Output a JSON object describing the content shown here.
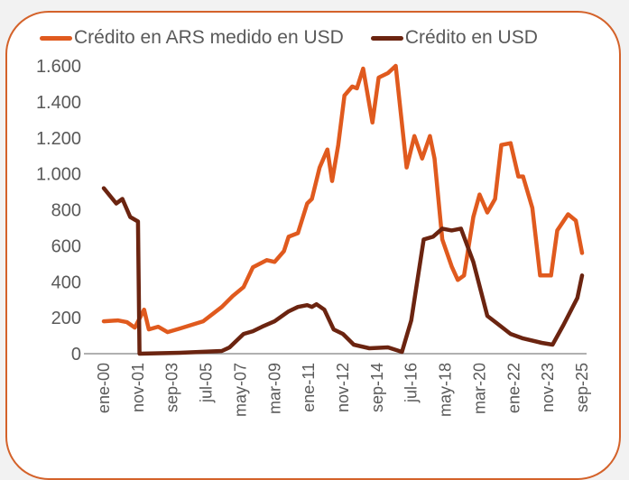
{
  "chart_data": {
    "type": "line",
    "title": "",
    "xlabel": "",
    "ylabel": "",
    "ylim": [
      0,
      1600
    ],
    "yticks": [
      0,
      200,
      400,
      600,
      800,
      1000,
      1200,
      1400,
      1600
    ],
    "ytick_labels": [
      "0",
      "200",
      "400",
      "600",
      "800",
      "1.000",
      "1.200",
      "1.400",
      "1.600"
    ],
    "xlim": [
      "2000-01",
      "2025-09"
    ],
    "xticks": [
      "2000-01",
      "2001-11",
      "2003-09",
      "2005-07",
      "2007-05",
      "2009-03",
      "2011-01",
      "2012-11",
      "2014-09",
      "2016-07",
      "2018-05",
      "2020-03",
      "2022-01",
      "2023-11",
      "2025-09"
    ],
    "xtick_labels": [
      "ene-00",
      "nov-01",
      "sep-03",
      "jul-05",
      "may-07",
      "mar-09",
      "ene-11",
      "nov-12",
      "sep-14",
      "jul-16",
      "may-18",
      "mar-20",
      "ene-22",
      "nov-23",
      "sep-25"
    ],
    "grid": false,
    "legend_position": "top",
    "series": [
      {
        "name": "Crédito en ARS medido en USD",
        "color": "#e05a1e",
        "points": [
          [
            "2000-01",
            180
          ],
          [
            "2000-10",
            185
          ],
          [
            "2001-04",
            175
          ],
          [
            "2001-09",
            145
          ],
          [
            "2002-03",
            245
          ],
          [
            "2002-06",
            135
          ],
          [
            "2002-12",
            150
          ],
          [
            "2003-06",
            120
          ],
          [
            "2004-02",
            140
          ],
          [
            "2005-05",
            180
          ],
          [
            "2006-05",
            260
          ],
          [
            "2006-12",
            320
          ],
          [
            "2007-07",
            370
          ],
          [
            "2008-01",
            480
          ],
          [
            "2008-10",
            520
          ],
          [
            "2009-03",
            510
          ],
          [
            "2009-09",
            570
          ],
          [
            "2009-12",
            650
          ],
          [
            "2010-06",
            670
          ],
          [
            "2010-12",
            835
          ],
          [
            "2011-03",
            860
          ],
          [
            "2011-08",
            1035
          ],
          [
            "2012-01",
            1135
          ],
          [
            "2012-04",
            960
          ],
          [
            "2012-08",
            1160
          ],
          [
            "2012-12",
            1435
          ],
          [
            "2013-05",
            1485
          ],
          [
            "2013-08",
            1475
          ],
          [
            "2013-12",
            1585
          ],
          [
            "2014-06",
            1285
          ],
          [
            "2014-10",
            1535
          ],
          [
            "2015-04",
            1560
          ],
          [
            "2015-09",
            1600
          ],
          [
            "2016-04",
            1035
          ],
          [
            "2016-09",
            1210
          ],
          [
            "2017-02",
            1085
          ],
          [
            "2017-07",
            1210
          ],
          [
            "2017-10",
            1085
          ],
          [
            "2018-03",
            635
          ],
          [
            "2018-09",
            485
          ],
          [
            "2019-01",
            410
          ],
          [
            "2019-05",
            435
          ],
          [
            "2019-11",
            760
          ],
          [
            "2020-03",
            885
          ],
          [
            "2020-08",
            785
          ],
          [
            "2021-01",
            860
          ],
          [
            "2021-05",
            1160
          ],
          [
            "2021-11",
            1170
          ],
          [
            "2022-04",
            985
          ],
          [
            "2022-07",
            985
          ],
          [
            "2023-01",
            810
          ],
          [
            "2023-06",
            435
          ],
          [
            "2024-01",
            435
          ],
          [
            "2024-05",
            685
          ],
          [
            "2024-12",
            775
          ],
          [
            "2025-05",
            740
          ],
          [
            "2025-09",
            560
          ]
        ]
      },
      {
        "name": "Crédito en USD",
        "color": "#6b2410",
        "points": [
          [
            "2000-01",
            920
          ],
          [
            "2000-09",
            835
          ],
          [
            "2001-01",
            860
          ],
          [
            "2001-06",
            760
          ],
          [
            "2001-11",
            735
          ],
          [
            "2001-12",
            0
          ],
          [
            "2004-02",
            5
          ],
          [
            "2006-05",
            15
          ],
          [
            "2006-10",
            35
          ],
          [
            "2007-07",
            110
          ],
          [
            "2008-01",
            125
          ],
          [
            "2008-07",
            150
          ],
          [
            "2009-03",
            180
          ],
          [
            "2009-12",
            235
          ],
          [
            "2010-06",
            260
          ],
          [
            "2010-12",
            270
          ],
          [
            "2011-03",
            260
          ],
          [
            "2011-06",
            275
          ],
          [
            "2011-11",
            245
          ],
          [
            "2012-05",
            135
          ],
          [
            "2012-11",
            110
          ],
          [
            "2013-06",
            50
          ],
          [
            "2014-04",
            30
          ],
          [
            "2015-04",
            35
          ],
          [
            "2016-01",
            10
          ],
          [
            "2016-07",
            185
          ],
          [
            "2017-03",
            635
          ],
          [
            "2017-09",
            650
          ],
          [
            "2018-03",
            695
          ],
          [
            "2018-09",
            685
          ],
          [
            "2019-03",
            695
          ],
          [
            "2019-11",
            510
          ],
          [
            "2020-08",
            210
          ],
          [
            "2021-02",
            170
          ],
          [
            "2021-11",
            110
          ],
          [
            "2022-07",
            85
          ],
          [
            "2023-07",
            60
          ],
          [
            "2024-02",
            50
          ],
          [
            "2024-09",
            160
          ],
          [
            "2025-06",
            310
          ],
          [
            "2025-09",
            435
          ]
        ]
      }
    ]
  }
}
